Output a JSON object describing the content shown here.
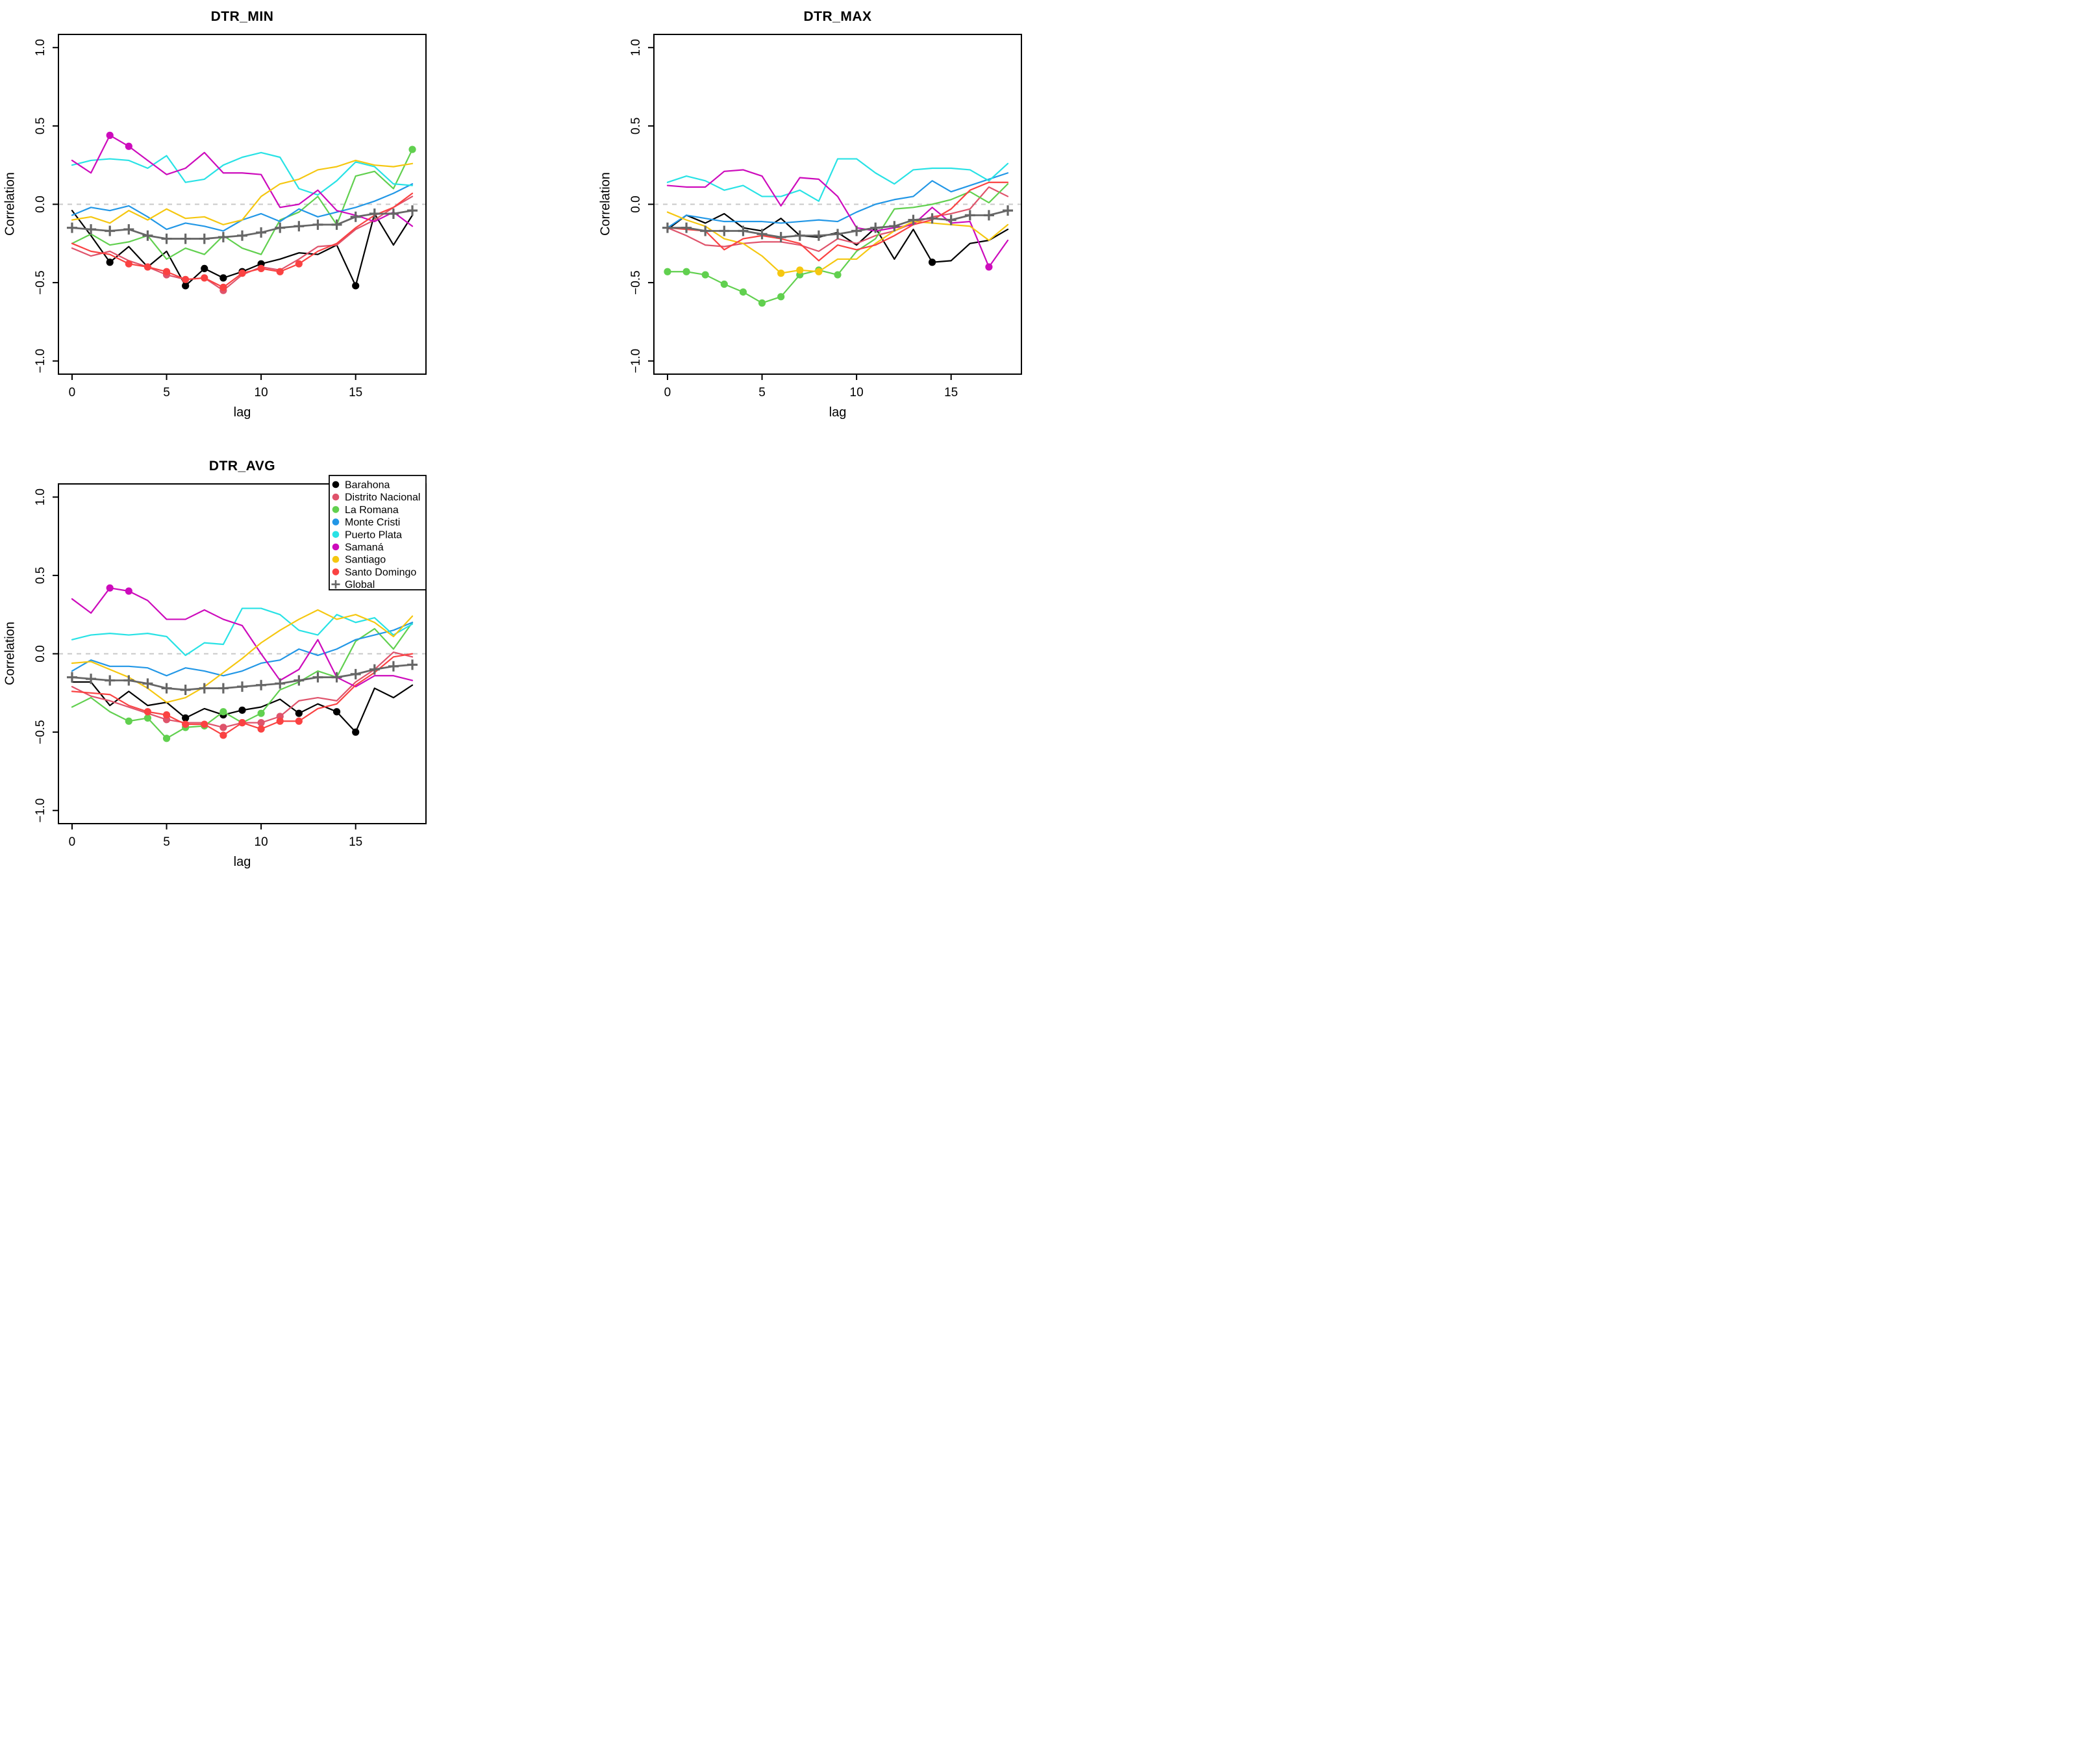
{
  "figure": {
    "background": "#FFFFFF",
    "x_tick_values": [
      0,
      5,
      10,
      15
    ],
    "y_tick_values": [
      1,
      0.5,
      0,
      -0.5,
      -1
    ],
    "y_tick_labels": [
      "1.0",
      "0.5",
      "0.0",
      "−0.5",
      "−1.0"
    ],
    "zero_line": {
      "value": 0,
      "style": "dashed",
      "color": "#C9C9C9"
    },
    "global_color": "#666666"
  },
  "chart_data": [
    {
      "type": "line",
      "title": "DTR_MIN",
      "xlabel": "lag",
      "ylabel": "Correlation",
      "xlim": [
        0,
        18
      ],
      "ylim": [
        -1,
        1
      ],
      "grid": false,
      "x": [
        0,
        1,
        2,
        3,
        4,
        5,
        6,
        7,
        8,
        9,
        10,
        11,
        12,
        13,
        14,
        15,
        16,
        17,
        18
      ],
      "series": [
        {
          "name": "Barahona",
          "color": "#000000",
          "marker": "circle",
          "marker_lags": [
            2,
            6,
            7,
            8,
            9,
            10,
            15
          ],
          "values": [
            -0.04,
            -0.2,
            -0.37,
            -0.27,
            -0.4,
            -0.3,
            -0.52,
            -0.41,
            -0.47,
            -0.43,
            -0.38,
            -0.35,
            -0.31,
            -0.32,
            -0.26,
            -0.52,
            -0.06,
            -0.26,
            -0.07
          ]
        },
        {
          "name": "Distrito Nacional",
          "color": "#DF536B",
          "marker": "circle",
          "marker_lags": [
            5,
            8
          ],
          "values": [
            -0.28,
            -0.33,
            -0.3,
            -0.36,
            -0.4,
            -0.45,
            -0.48,
            -0.47,
            -0.55,
            -0.45,
            -0.4,
            -0.42,
            -0.35,
            -0.27,
            -0.26,
            -0.16,
            -0.1,
            -0.02,
            0.05
          ]
        },
        {
          "name": "La Romana",
          "color": "#61D04F",
          "marker": "circle",
          "marker_lags": [
            18
          ],
          "values": [
            -0.25,
            -0.19,
            -0.26,
            -0.24,
            -0.2,
            -0.35,
            -0.28,
            -0.32,
            -0.2,
            -0.28,
            -0.32,
            -0.1,
            -0.05,
            0.05,
            -0.13,
            0.18,
            0.21,
            0.1,
            0.35
          ]
        },
        {
          "name": "Monte Cristi",
          "color": "#2297E6",
          "marker": "circle",
          "marker_lags": [],
          "values": [
            -0.07,
            -0.02,
            -0.04,
            -0.01,
            -0.08,
            -0.16,
            -0.12,
            -0.14,
            -0.17,
            -0.1,
            -0.06,
            -0.11,
            -0.03,
            -0.08,
            -0.05,
            -0.02,
            0.02,
            0.07,
            0.13
          ]
        },
        {
          "name": "Puerto Plata",
          "color": "#28E2E5",
          "marker": "circle",
          "marker_lags": [],
          "values": [
            0.25,
            0.28,
            0.29,
            0.28,
            0.23,
            0.31,
            0.14,
            0.16,
            0.25,
            0.3,
            0.33,
            0.3,
            0.1,
            0.06,
            0.15,
            0.27,
            0.24,
            0.13,
            0.12
          ]
        },
        {
          "name": "Samaná",
          "color": "#CD0BBC",
          "marker": "circle",
          "marker_lags": [
            2,
            3
          ],
          "values": [
            0.28,
            0.2,
            0.44,
            0.37,
            0.28,
            0.19,
            0.23,
            0.33,
            0.2,
            0.2,
            0.19,
            -0.02,
            0.0,
            0.09,
            -0.04,
            -0.07,
            -0.11,
            -0.05,
            -0.14
          ]
        },
        {
          "name": "Santiago",
          "color": "#F5C710",
          "marker": "circle",
          "marker_lags": [],
          "values": [
            -0.1,
            -0.08,
            -0.12,
            -0.04,
            -0.1,
            -0.03,
            -0.09,
            -0.08,
            -0.13,
            -0.1,
            0.05,
            0.13,
            0.16,
            0.22,
            0.24,
            0.28,
            0.25,
            0.24,
            0.26
          ]
        },
        {
          "name": "Santo Domingo",
          "color": "#FA4242",
          "marker": "circle",
          "marker_lags": [
            3,
            4,
            5,
            6,
            7,
            8,
            9,
            10,
            11,
            12
          ],
          "values": [
            -0.25,
            -0.3,
            -0.32,
            -0.38,
            -0.4,
            -0.43,
            -0.48,
            -0.47,
            -0.53,
            -0.44,
            -0.41,
            -0.43,
            -0.38,
            -0.3,
            -0.25,
            -0.15,
            -0.07,
            -0.02,
            0.07
          ]
        },
        {
          "name": "Global",
          "color": "#666666",
          "marker": "plus",
          "marker_lags": [
            0,
            1,
            2,
            3,
            4,
            5,
            6,
            7,
            8,
            9,
            10,
            11,
            12,
            13,
            14,
            15,
            16,
            17,
            18
          ],
          "values": [
            -0.15,
            -0.16,
            -0.17,
            -0.16,
            -0.2,
            -0.22,
            -0.22,
            -0.22,
            -0.21,
            -0.2,
            -0.18,
            -0.15,
            -0.14,
            -0.13,
            -0.13,
            -0.08,
            -0.06,
            -0.06,
            -0.04
          ]
        }
      ]
    },
    {
      "type": "line",
      "title": "DTR_MAX",
      "xlabel": "lag",
      "ylabel": "Correlation",
      "xlim": [
        0,
        18
      ],
      "ylim": [
        -1,
        1
      ],
      "grid": false,
      "x": [
        0,
        1,
        2,
        3,
        4,
        5,
        6,
        7,
        8,
        9,
        10,
        11,
        12,
        13,
        14,
        15,
        16,
        17,
        18
      ],
      "series": [
        {
          "name": "Barahona",
          "color": "#000000",
          "marker": "circle",
          "marker_lags": [
            14
          ],
          "values": [
            -0.16,
            -0.07,
            -0.12,
            -0.06,
            -0.15,
            -0.17,
            -0.09,
            -0.2,
            -0.21,
            -0.18,
            -0.26,
            -0.15,
            -0.35,
            -0.16,
            -0.37,
            -0.36,
            -0.25,
            -0.23,
            -0.16
          ]
        },
        {
          "name": "Distrito Nacional",
          "color": "#DF536B",
          "marker": "circle",
          "marker_lags": [],
          "values": [
            -0.15,
            -0.2,
            -0.26,
            -0.27,
            -0.25,
            -0.24,
            -0.24,
            -0.26,
            -0.3,
            -0.22,
            -0.25,
            -0.2,
            -0.17,
            -0.12,
            -0.08,
            -0.06,
            -0.03,
            0.11,
            0.05
          ]
        },
        {
          "name": "La Romana",
          "color": "#61D04F",
          "marker": "circle",
          "marker_lags": [
            0,
            1,
            2,
            3,
            4,
            5,
            6,
            7,
            8,
            9
          ],
          "values": [
            -0.43,
            -0.43,
            -0.45,
            -0.51,
            -0.56,
            -0.63,
            -0.59,
            -0.45,
            -0.42,
            -0.45,
            -0.3,
            -0.22,
            -0.03,
            -0.02,
            0.0,
            0.03,
            0.08,
            0.01,
            0.13
          ]
        },
        {
          "name": "Monte Cristi",
          "color": "#2297E6",
          "marker": "circle",
          "marker_lags": [],
          "values": [
            -0.15,
            -0.07,
            -0.09,
            -0.11,
            -0.11,
            -0.11,
            -0.12,
            -0.11,
            -0.1,
            -0.11,
            -0.05,
            0.0,
            0.03,
            0.05,
            0.15,
            0.08,
            0.12,
            0.16,
            0.2
          ]
        },
        {
          "name": "Puerto Plata",
          "color": "#28E2E5",
          "marker": "circle",
          "marker_lags": [],
          "values": [
            0.14,
            0.18,
            0.15,
            0.09,
            0.12,
            0.05,
            0.05,
            0.09,
            0.02,
            0.29,
            0.29,
            0.2,
            0.13,
            0.22,
            0.23,
            0.23,
            0.22,
            0.15,
            0.26
          ]
        },
        {
          "name": "Samaná",
          "color": "#CD0BBC",
          "marker": "circle",
          "marker_lags": [
            17
          ],
          "values": [
            0.12,
            0.11,
            0.11,
            0.21,
            0.22,
            0.18,
            -0.01,
            0.17,
            0.16,
            0.05,
            -0.15,
            -0.17,
            -0.15,
            -0.13,
            -0.02,
            -0.12,
            -0.11,
            -0.4,
            -0.23
          ]
        },
        {
          "name": "Santiago",
          "color": "#F5C710",
          "marker": "circle",
          "marker_lags": [
            6,
            7,
            8
          ],
          "values": [
            -0.05,
            -0.1,
            -0.14,
            -0.22,
            -0.25,
            -0.33,
            -0.44,
            -0.42,
            -0.43,
            -0.35,
            -0.35,
            -0.25,
            -0.17,
            -0.11,
            -0.12,
            -0.13,
            -0.14,
            -0.23,
            -0.13
          ]
        },
        {
          "name": "Santo Domingo",
          "color": "#FA4242",
          "marker": "circle",
          "marker_lags": [],
          "values": [
            -0.15,
            -0.16,
            -0.17,
            -0.29,
            -0.22,
            -0.2,
            -0.22,
            -0.25,
            -0.36,
            -0.26,
            -0.29,
            -0.26,
            -0.2,
            -0.13,
            -0.1,
            -0.03,
            0.09,
            0.14,
            0.14
          ]
        },
        {
          "name": "Global",
          "color": "#666666",
          "marker": "plus",
          "marker_lags": [
            0,
            1,
            2,
            3,
            4,
            5,
            6,
            7,
            8,
            9,
            10,
            11,
            12,
            13,
            14,
            15,
            16,
            17,
            18
          ],
          "values": [
            -0.15,
            -0.15,
            -0.17,
            -0.17,
            -0.17,
            -0.19,
            -0.21,
            -0.2,
            -0.2,
            -0.19,
            -0.17,
            -0.15,
            -0.14,
            -0.1,
            -0.09,
            -0.1,
            -0.07,
            -0.07,
            -0.04
          ]
        }
      ]
    },
    {
      "type": "line",
      "title": "DTR_AVG",
      "xlabel": "lag",
      "ylabel": "Correlation",
      "xlim": [
        0,
        18
      ],
      "ylim": [
        -1,
        1
      ],
      "grid": false,
      "legend": {
        "position": "top-right",
        "items": [
          "Barahona",
          "Distrito Nacional",
          "La Romana",
          "Monte Cristi",
          "Puerto Plata",
          "Samaná",
          "Santiago",
          "Santo Domingo",
          "Global"
        ]
      },
      "x": [
        0,
        1,
        2,
        3,
        4,
        5,
        6,
        7,
        8,
        9,
        10,
        11,
        12,
        13,
        14,
        15,
        16,
        17,
        18
      ],
      "series": [
        {
          "name": "Barahona",
          "color": "#000000",
          "marker": "circle",
          "marker_lags": [
            6,
            8,
            9,
            12,
            14,
            15
          ],
          "values": [
            -0.18,
            -0.18,
            -0.33,
            -0.24,
            -0.33,
            -0.31,
            -0.41,
            -0.35,
            -0.39,
            -0.36,
            -0.34,
            -0.29,
            -0.38,
            -0.32,
            -0.37,
            -0.5,
            -0.22,
            -0.28,
            -0.2
          ]
        },
        {
          "name": "Distrito Nacional",
          "color": "#DF536B",
          "marker": "circle",
          "marker_lags": [
            5,
            8,
            9,
            10,
            11
          ],
          "values": [
            -0.21,
            -0.27,
            -0.3,
            -0.34,
            -0.38,
            -0.42,
            -0.44,
            -0.44,
            -0.47,
            -0.44,
            -0.44,
            -0.4,
            -0.3,
            -0.28,
            -0.3,
            -0.18,
            -0.1,
            0.01,
            -0.02
          ]
        },
        {
          "name": "La Romana",
          "color": "#61D04F",
          "marker": "circle",
          "marker_lags": [
            3,
            4,
            5,
            6,
            7,
            8,
            10
          ],
          "values": [
            -0.34,
            -0.28,
            -0.37,
            -0.43,
            -0.41,
            -0.54,
            -0.47,
            -0.46,
            -0.37,
            -0.44,
            -0.38,
            -0.23,
            -0.18,
            -0.11,
            -0.15,
            0.08,
            0.16,
            0.03,
            0.2
          ]
        },
        {
          "name": "Monte Cristi",
          "color": "#2297E6",
          "marker": "circle",
          "marker_lags": [],
          "values": [
            -0.11,
            -0.04,
            -0.08,
            -0.08,
            -0.09,
            -0.14,
            -0.09,
            -0.11,
            -0.14,
            -0.11,
            -0.06,
            -0.04,
            0.03,
            -0.01,
            0.03,
            0.09,
            0.12,
            0.15,
            0.2
          ]
        },
        {
          "name": "Puerto Plata",
          "color": "#28E2E5",
          "marker": "circle",
          "marker_lags": [],
          "values": [
            0.09,
            0.12,
            0.13,
            0.12,
            0.13,
            0.11,
            -0.01,
            0.07,
            0.06,
            0.29,
            0.29,
            0.25,
            0.15,
            0.12,
            0.25,
            0.2,
            0.23,
            0.12,
            0.19
          ]
        },
        {
          "name": "Samaná",
          "color": "#CD0BBC",
          "marker": "circle",
          "marker_lags": [
            2,
            3
          ],
          "values": [
            0.35,
            0.26,
            0.42,
            0.4,
            0.34,
            0.22,
            0.22,
            0.28,
            0.22,
            0.18,
            0.0,
            -0.17,
            -0.1,
            0.09,
            -0.15,
            -0.21,
            -0.14,
            -0.14,
            -0.17
          ]
        },
        {
          "name": "Santiago",
          "color": "#F5C710",
          "marker": "circle",
          "marker_lags": [],
          "values": [
            -0.06,
            -0.05,
            -0.1,
            -0.15,
            -0.22,
            -0.31,
            -0.28,
            -0.21,
            -0.12,
            -0.03,
            0.07,
            0.15,
            0.22,
            0.28,
            0.22,
            0.25,
            0.2,
            0.11,
            0.24
          ]
        },
        {
          "name": "Santo Domingo",
          "color": "#FA4242",
          "marker": "circle",
          "marker_lags": [
            4,
            5,
            6,
            7,
            8,
            9,
            10,
            11,
            12
          ],
          "values": [
            -0.24,
            -0.25,
            -0.26,
            -0.33,
            -0.37,
            -0.39,
            -0.45,
            -0.45,
            -0.52,
            -0.44,
            -0.48,
            -0.43,
            -0.43,
            -0.35,
            -0.32,
            -0.2,
            -0.12,
            -0.02,
            0.0
          ]
        },
        {
          "name": "Global",
          "color": "#666666",
          "marker": "plus",
          "marker_lags": [
            0,
            1,
            2,
            3,
            4,
            5,
            6,
            7,
            8,
            9,
            10,
            11,
            12,
            13,
            14,
            15,
            16,
            17,
            18
          ],
          "values": [
            -0.15,
            -0.16,
            -0.17,
            -0.17,
            -0.19,
            -0.22,
            -0.23,
            -0.22,
            -0.22,
            -0.21,
            -0.2,
            -0.19,
            -0.17,
            -0.15,
            -0.15,
            -0.13,
            -0.1,
            -0.08,
            -0.07
          ]
        }
      ]
    }
  ]
}
